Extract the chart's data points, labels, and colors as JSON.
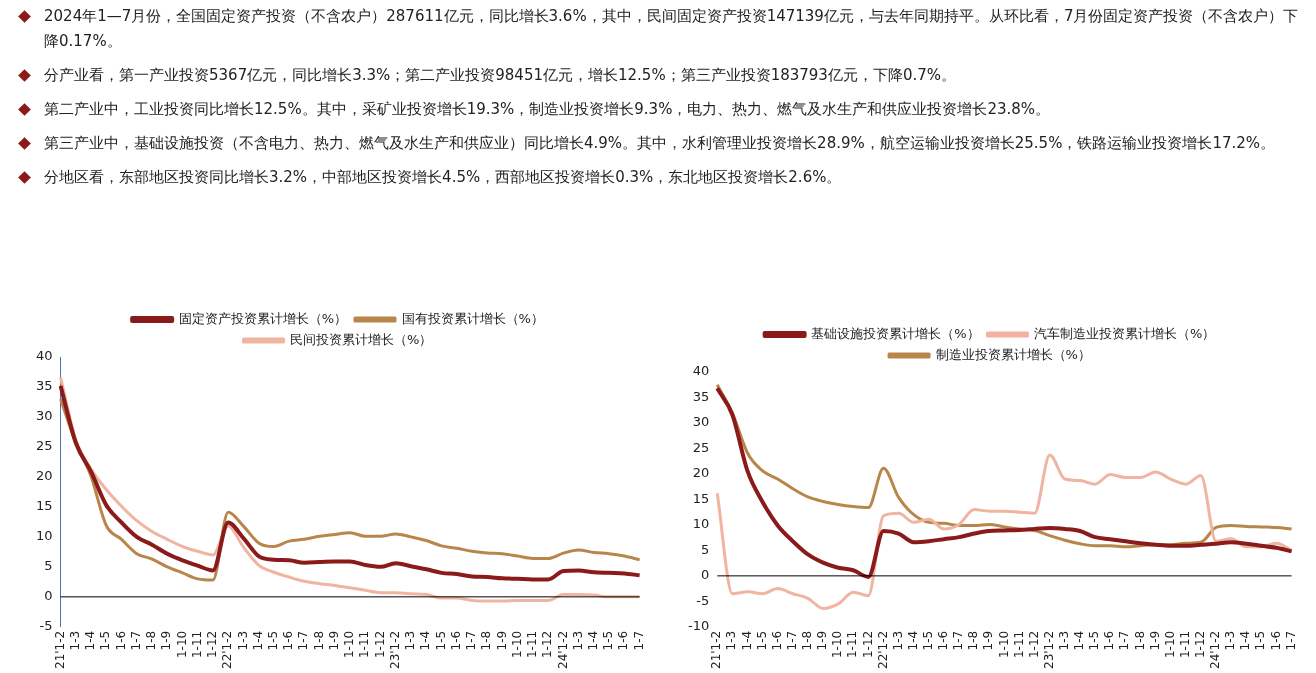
{
  "chart_data": [
    {
      "type": "other",
      "annotations": [
        "2024年1—7月份，全国固定资产投资（不含农户）287611亿元，同比增长3.6%，其中，民间固定资产投资147139亿元，与去年同期持平。从环比看，7月份固定资产投资（不含农户）下降0.17%。",
        "分产业看，第一产业投资5367亿元，同比增长3.3%；第二产业投资98451亿元，增长12.5%；第三产业投资183793亿元，下降0.7%。",
        "第二产业中，工业投资同比增长12.5%。其中，采矿业投资增长19.3%，制造业投资增长9.3%，电力、热力、燃气及水生产和供应业投资增长23.8%。",
        "第三产业中，基础设施投资（不含电力、热力、燃气及水生产和供应业）同比增长4.9%。其中，水利管理业投资增长28.9%，航空运输业投资增长25.5%，铁路运输业投资增长17.2%。",
        "分地区看，东部地区投资同比增长3.2%，中部地区投资增长4.5%，西部地区投资增长0.3%，东北地区投资增长2.6%。"
      ]
    },
    {
      "type": "line",
      "legend": "top",
      "grid": false,
      "marker": "none",
      "line_style": "solid",
      "categories": [
        "21'1-2",
        "1-3",
        "1-4",
        "1-5",
        "1-6",
        "1-7",
        "1-8",
        "1-9",
        "1-10",
        "1-11",
        "1-12",
        "22'1-2",
        "1-3",
        "1-4",
        "1-5",
        "1-6",
        "1-7",
        "1-8",
        "1-9",
        "1-10",
        "1-11",
        "1-12",
        "23'1-2",
        "1-3",
        "1-4",
        "1-5",
        "1-6",
        "1-7",
        "1-8",
        "1-9",
        "1-10",
        "1-11",
        "1-12",
        "24'1-2",
        "1-3",
        "1-4",
        "1-5",
        "1-6",
        "1-7"
      ],
      "ylim": [
        -5,
        40
      ],
      "yticks": [
        -5,
        0,
        5,
        10,
        15,
        20,
        25,
        30,
        35,
        40
      ],
      "ref_lines": [
        {
          "axis": "y",
          "value": 0,
          "color": "#000000"
        }
      ],
      "series": [
        {
          "name": "固定资产投资累计增长（%）",
          "color": "#8b1a1a",
          "values": [
            35.2,
            25.7,
            20.9,
            15.3,
            12.4,
            10.0,
            8.7,
            7.2,
            6.1,
            5.2,
            4.4,
            12.4,
            9.8,
            6.8,
            6.2,
            6.1,
            5.7,
            5.8,
            5.9,
            5.9,
            5.3,
            5.0,
            5.6,
            5.1,
            4.6,
            4.0,
            3.8,
            3.4,
            3.3,
            3.1,
            3.0,
            2.9,
            2.9,
            4.3,
            4.4,
            4.1,
            4.0,
            3.9,
            3.6
          ]
        },
        {
          "name": "国有投资累计增长（%）",
          "color": "#b8864a",
          "values": [
            33.0,
            25.7,
            20.1,
            11.9,
            9.6,
            7.2,
            6.3,
            5.0,
            4.0,
            3.0,
            2.8,
            14.1,
            11.8,
            9.0,
            8.4,
            9.3,
            9.6,
            10.1,
            10.4,
            10.7,
            10.1,
            10.1,
            10.5,
            10.0,
            9.4,
            8.5,
            8.1,
            7.6,
            7.3,
            7.2,
            6.8,
            6.4,
            6.4,
            7.3,
            7.8,
            7.4,
            7.2,
            6.8,
            6.2
          ]
        },
        {
          "name": "民间投资累计增长（%）",
          "color": "#f0b4a0",
          "values": [
            36.6,
            26.2,
            21.3,
            17.9,
            15.1,
            12.7,
            10.9,
            9.6,
            8.4,
            7.6,
            7.0,
            11.8,
            8.3,
            5.3,
            4.1,
            3.3,
            2.6,
            2.2,
            1.9,
            1.5,
            1.1,
            0.7,
            0.7,
            0.5,
            0.4,
            -0.2,
            -0.2,
            -0.6,
            -0.7,
            -0.7,
            -0.6,
            -0.6,
            -0.6,
            0.4,
            0.4,
            0.3,
            0.0,
            0.0,
            0.0
          ]
        }
      ]
    },
    {
      "type": "line",
      "legend": "top",
      "grid": false,
      "marker": "none",
      "line_style": "solid",
      "categories": [
        "21'1-2",
        "1-3",
        "1-4",
        "1-5",
        "1-6",
        "1-7",
        "1-8",
        "1-9",
        "1-10",
        "1-11",
        "1-12",
        "22'1-2",
        "1-3",
        "1-4",
        "1-5",
        "1-6",
        "1-7",
        "1-8",
        "1-9",
        "1-10",
        "1-11",
        "1-12",
        "23'1-2",
        "1-3",
        "1-4",
        "1-5",
        "1-6",
        "1-7",
        "1-8",
        "1-9",
        "1-10",
        "1-11",
        "1-12",
        "24'1-2",
        "1-3",
        "1-4",
        "1-5",
        "1-6",
        "1-7"
      ],
      "ylim": [
        -10,
        40
      ],
      "yticks": [
        -10,
        -5,
        0,
        5,
        10,
        15,
        20,
        25,
        30,
        35,
        40
      ],
      "ref_lines": [
        {
          "axis": "y",
          "value": 0,
          "color": "#000000"
        }
      ],
      "series": [
        {
          "name": "基础设施投资累计增长（%）",
          "color": "#8b1a1a",
          "values": [
            36.8,
            31.6,
            20.6,
            14.5,
            9.9,
            6.8,
            4.2,
            2.6,
            1.6,
            1.1,
            -0.2,
            8.8,
            8.3,
            6.6,
            6.8,
            7.2,
            7.6,
            8.3,
            8.8,
            8.9,
            9.0,
            9.2,
            9.4,
            9.2,
            8.8,
            7.6,
            7.2,
            6.8,
            6.4,
            6.1,
            5.9,
            5.9,
            6.1,
            6.3,
            6.6,
            6.3,
            5.9,
            5.5,
            4.8
          ]
        },
        {
          "name": "汽车制造业投资累计增长（%）",
          "color": "#f0b4a0",
          "values": [
            16.2,
            -3.5,
            -3.1,
            -3.5,
            -2.5,
            -3.5,
            -4.4,
            -6.4,
            -5.5,
            -3.2,
            -3.9,
            11.8,
            12.3,
            10.5,
            11.1,
            9.2,
            10.1,
            13.0,
            12.7,
            12.7,
            12.5,
            12.3,
            23.7,
            19.0,
            18.7,
            18.0,
            19.9,
            19.3,
            19.3,
            20.4,
            19.0,
            18.0,
            19.7,
            6.8,
            7.3,
            5.7,
            5.7,
            6.4,
            5.0
          ]
        },
        {
          "name": "制造业投资累计增长（%）",
          "color": "#b8864a",
          "values": [
            37.5,
            32.0,
            24.1,
            20.6,
            19.0,
            17.1,
            15.5,
            14.6,
            14.0,
            13.6,
            13.4,
            21.1,
            15.4,
            12.0,
            10.5,
            10.3,
            9.9,
            9.9,
            10.1,
            9.6,
            9.2,
            8.9,
            7.9,
            7.0,
            6.3,
            5.9,
            5.9,
            5.7,
            5.9,
            6.1,
            6.1,
            6.4,
            6.6,
            9.5,
            9.9,
            9.7,
            9.6,
            9.5,
            9.2
          ]
        }
      ]
    }
  ]
}
